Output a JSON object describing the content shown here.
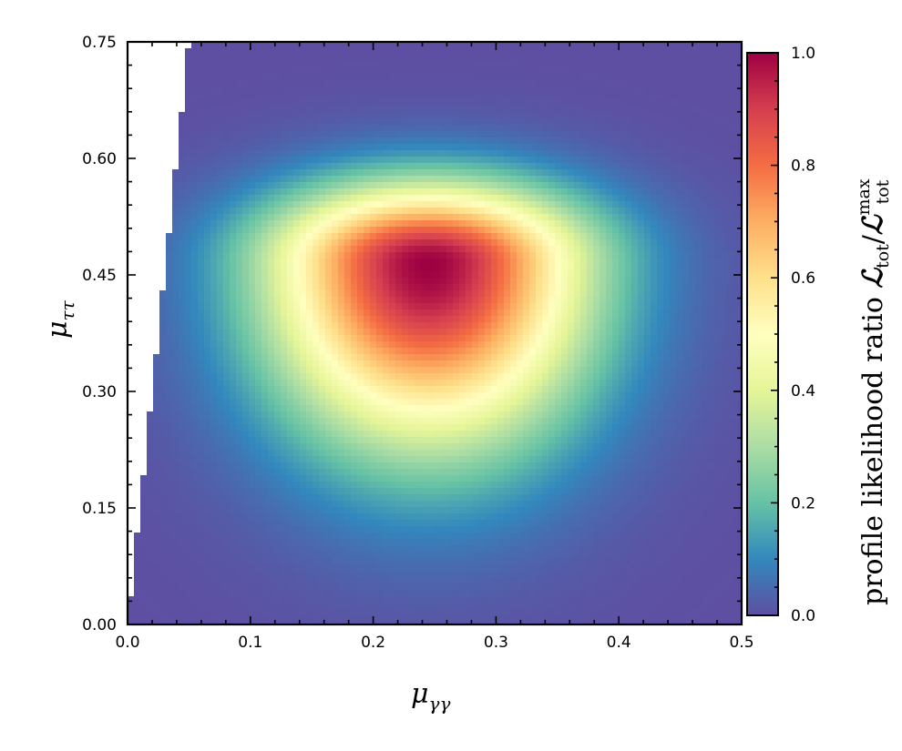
{
  "chart_data": {
    "type": "heatmap",
    "subtype": "scatter density (profile likelihood ratio)",
    "xlabel": {
      "symbol": "μ",
      "subscript": "γγ"
    },
    "ylabel": {
      "symbol": "μ",
      "subscript": "ττ"
    },
    "xlim": [
      0.0,
      0.5
    ],
    "ylim": [
      0.0,
      0.75
    ],
    "xticks": [
      "0.0",
      "0.1",
      "0.2",
      "0.3",
      "0.4",
      "0.5"
    ],
    "yticks": [
      "0.00",
      "0.15",
      "0.30",
      "0.45",
      "0.60",
      "0.75"
    ],
    "peak": {
      "x": 0.245,
      "y": 0.465,
      "value": 1.0
    },
    "spread": {
      "x_sigma": 0.09,
      "y_sigma_below": 0.16,
      "y_sigma_above": 0.07
    },
    "excluded_boundary_line": [
      [
        0.0,
        0.0
      ],
      [
        0.05,
        0.75
      ]
    ],
    "grid": false,
    "colorbar": {
      "range": [
        0.0,
        1.0
      ],
      "ticks": [
        "0.0",
        "0.2",
        "0.4",
        "0.6",
        "0.8",
        "1.0"
      ],
      "label": {
        "prefix": "profile likelihood ratio ",
        "numerator": "ℒ",
        "numerator_sub": "tot",
        "divider": "/",
        "denominator": "ℒ",
        "denominator_sub": "tot",
        "denominator_sup": "max"
      },
      "colormap": "Spectral_r",
      "colors": [
        "#5e4fa2",
        "#3288bd",
        "#66c2a5",
        "#abdda4",
        "#e6f598",
        "#ffffbf",
        "#fee08b",
        "#fdae61",
        "#f46d43",
        "#d53e4f",
        "#9e0142"
      ]
    }
  }
}
